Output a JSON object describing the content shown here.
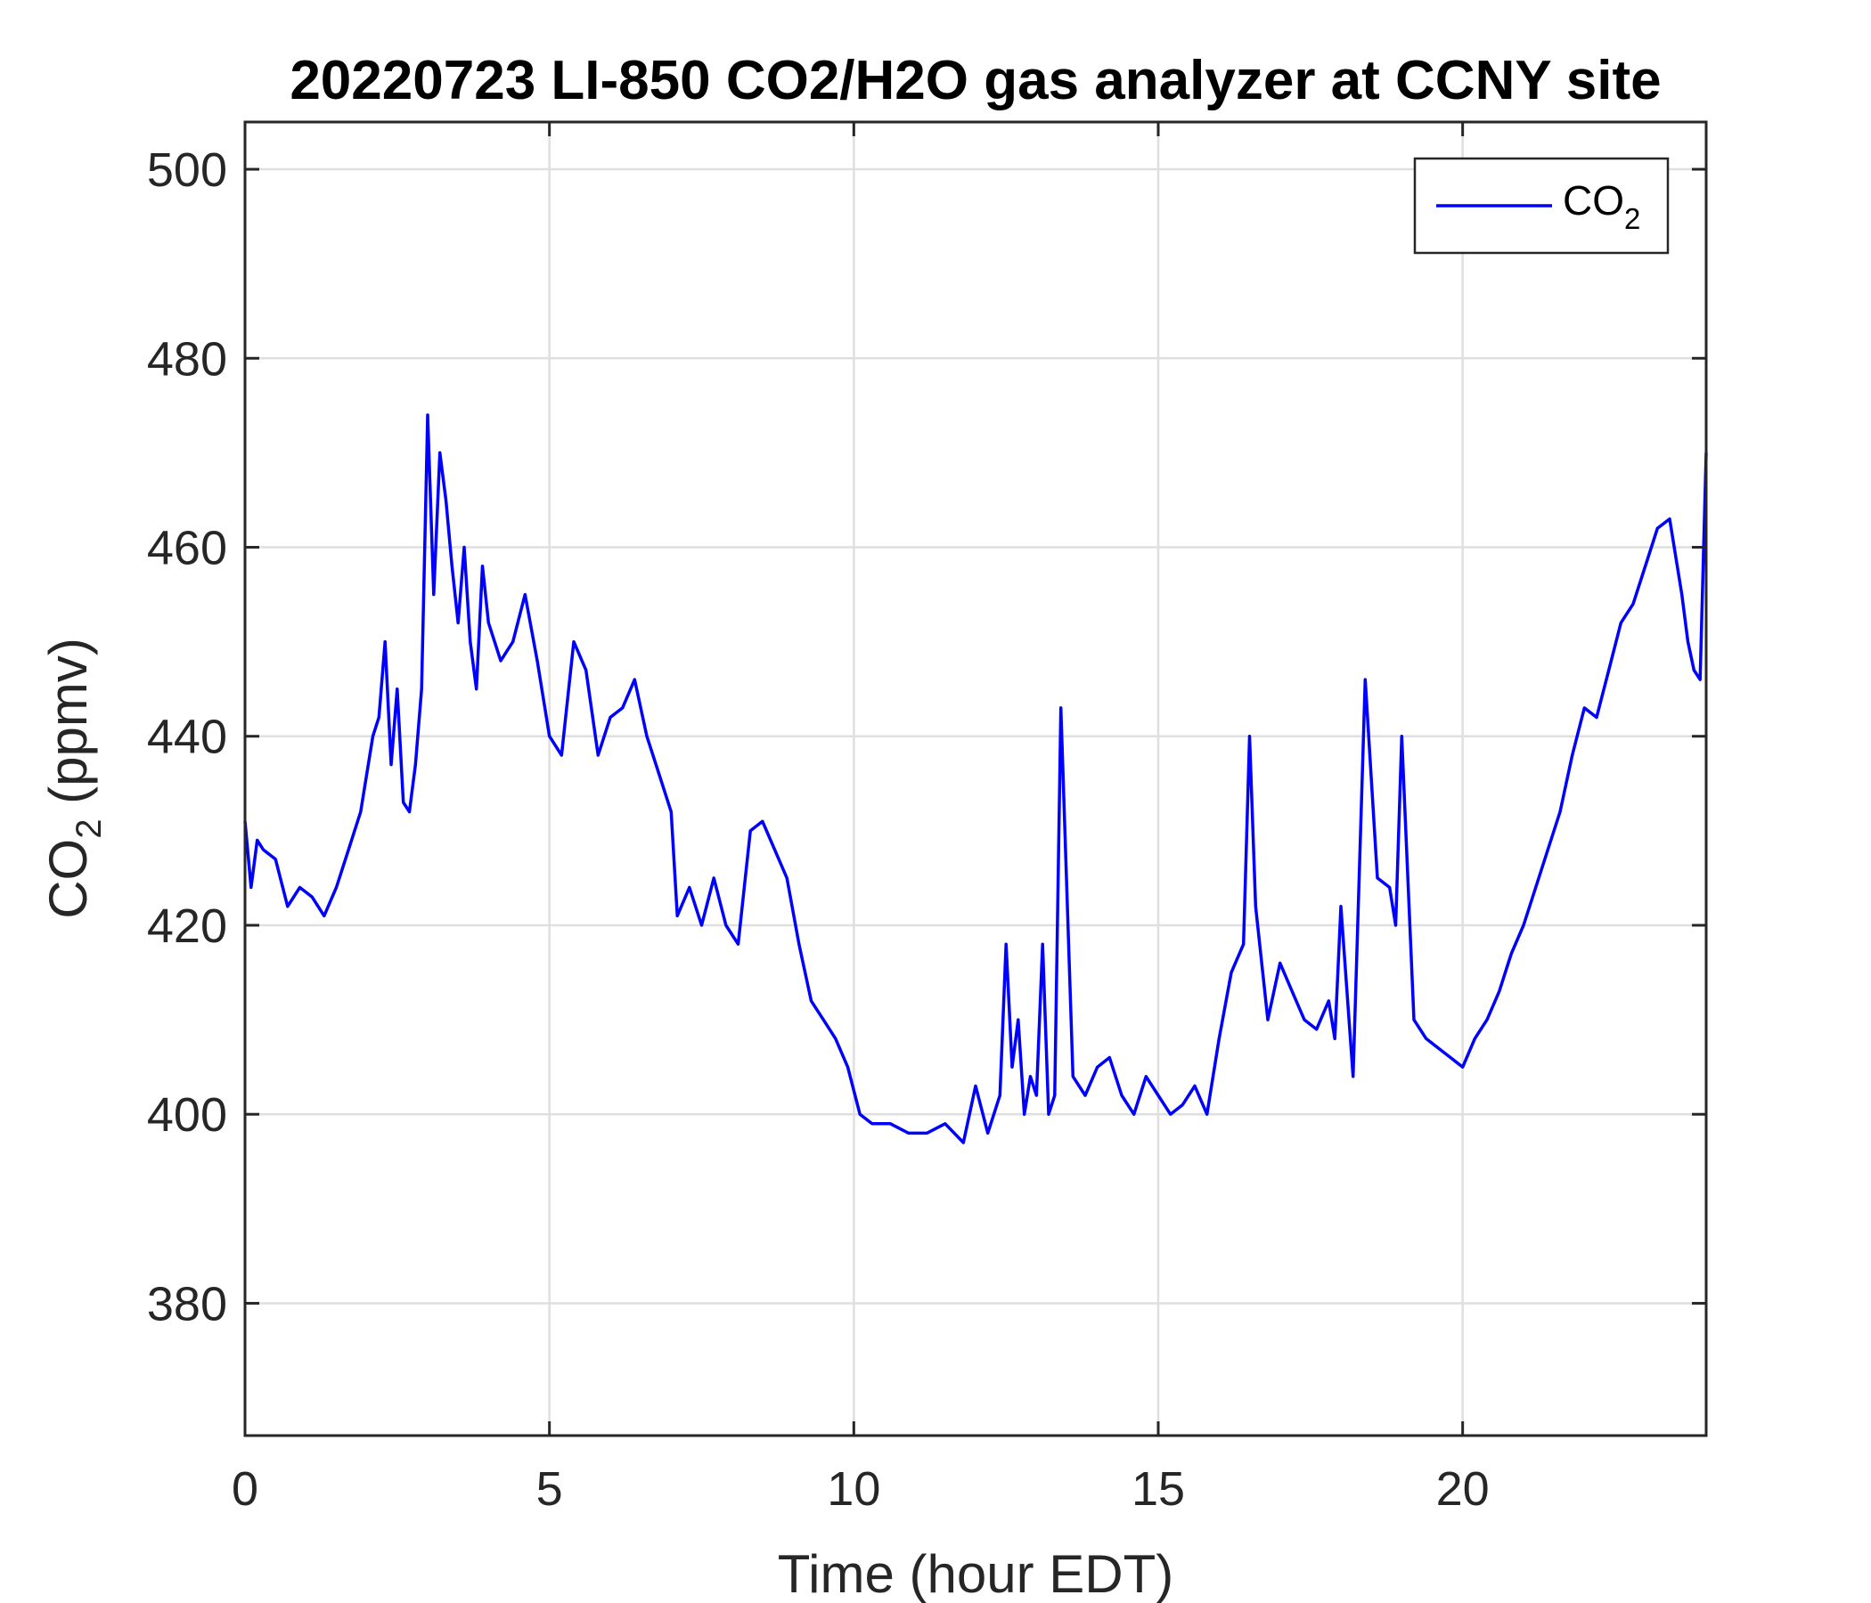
{
  "chart_data": {
    "type": "line",
    "title": "20220723 LI-850 CO2/H2O gas analyzer at CCNY site",
    "xlabel": "Time (hour EDT)",
    "ylabel": {
      "main": "CO",
      "sub": "2",
      "rest": " (ppmv)"
    },
    "xlim": [
      0,
      24
    ],
    "ylim": [
      366,
      505
    ],
    "xticks": [
      0,
      5,
      10,
      15,
      20
    ],
    "yticks": [
      380,
      400,
      420,
      440,
      460,
      480,
      500
    ],
    "grid": true,
    "legend": {
      "position": "top-right",
      "label_main": "CO",
      "label_sub": "2"
    },
    "series": [
      {
        "name": "CO2",
        "color": "#0000FF",
        "x": [
          0.0,
          0.1,
          0.2,
          0.3,
          0.5,
          0.7,
          0.9,
          1.1,
          1.3,
          1.5,
          1.7,
          1.9,
          2.1,
          2.2,
          2.3,
          2.4,
          2.5,
          2.6,
          2.7,
          2.8,
          2.9,
          3.0,
          3.1,
          3.2,
          3.3,
          3.4,
          3.5,
          3.6,
          3.7,
          3.8,
          3.9,
          4.0,
          4.2,
          4.4,
          4.6,
          4.8,
          5.0,
          5.2,
          5.4,
          5.6,
          5.8,
          6.0,
          6.2,
          6.4,
          6.6,
          6.8,
          7.0,
          7.1,
          7.3,
          7.5,
          7.7,
          7.9,
          8.1,
          8.3,
          8.5,
          8.7,
          8.9,
          9.1,
          9.3,
          9.5,
          9.7,
          9.9,
          10.1,
          10.3,
          10.6,
          10.9,
          11.2,
          11.5,
          11.8,
          12.0,
          12.2,
          12.4,
          12.5,
          12.6,
          12.7,
          12.8,
          12.9,
          13.0,
          13.1,
          13.2,
          13.3,
          13.4,
          13.6,
          13.8,
          14.0,
          14.2,
          14.4,
          14.6,
          14.8,
          15.0,
          15.2,
          15.4,
          15.6,
          15.8,
          16.0,
          16.2,
          16.4,
          16.5,
          16.6,
          16.8,
          17.0,
          17.2,
          17.4,
          17.6,
          17.8,
          17.9,
          18.0,
          18.2,
          18.4,
          18.6,
          18.8,
          18.9,
          19.0,
          19.2,
          19.4,
          19.6,
          19.8,
          20.0,
          20.2,
          20.4,
          20.6,
          20.8,
          21.0,
          21.2,
          21.4,
          21.6,
          21.8,
          22.0,
          22.2,
          22.4,
          22.6,
          22.8,
          23.0,
          23.2,
          23.4,
          23.6,
          23.7,
          23.8,
          23.9,
          24.0
        ],
        "y": [
          431,
          424,
          429,
          428,
          427,
          422,
          424,
          423,
          421,
          424,
          428,
          432,
          440,
          442,
          450,
          437,
          445,
          433,
          432,
          437,
          445,
          474,
          455,
          470,
          465,
          458,
          452,
          460,
          450,
          445,
          458,
          452,
          448,
          450,
          455,
          448,
          440,
          438,
          450,
          447,
          438,
          442,
          443,
          446,
          440,
          436,
          432,
          421,
          424,
          420,
          425,
          420,
          418,
          430,
          431,
          428,
          425,
          418,
          412,
          410,
          408,
          405,
          400,
          399,
          399,
          398,
          398,
          399,
          397,
          403,
          398,
          402,
          418,
          405,
          410,
          400,
          404,
          402,
          418,
          400,
          402,
          443,
          404,
          402,
          405,
          406,
          402,
          400,
          404,
          402,
          400,
          401,
          403,
          400,
          408,
          415,
          418,
          440,
          422,
          410,
          416,
          413,
          410,
          409,
          412,
          408,
          422,
          404,
          446,
          425,
          424,
          420,
          440,
          410,
          408,
          407,
          406,
          405,
          408,
          410,
          413,
          417,
          420,
          424,
          428,
          432,
          438,
          443,
          442,
          447,
          452,
          454,
          458,
          462,
          463,
          455,
          450,
          447,
          446,
          470
        ]
      }
    ]
  }
}
